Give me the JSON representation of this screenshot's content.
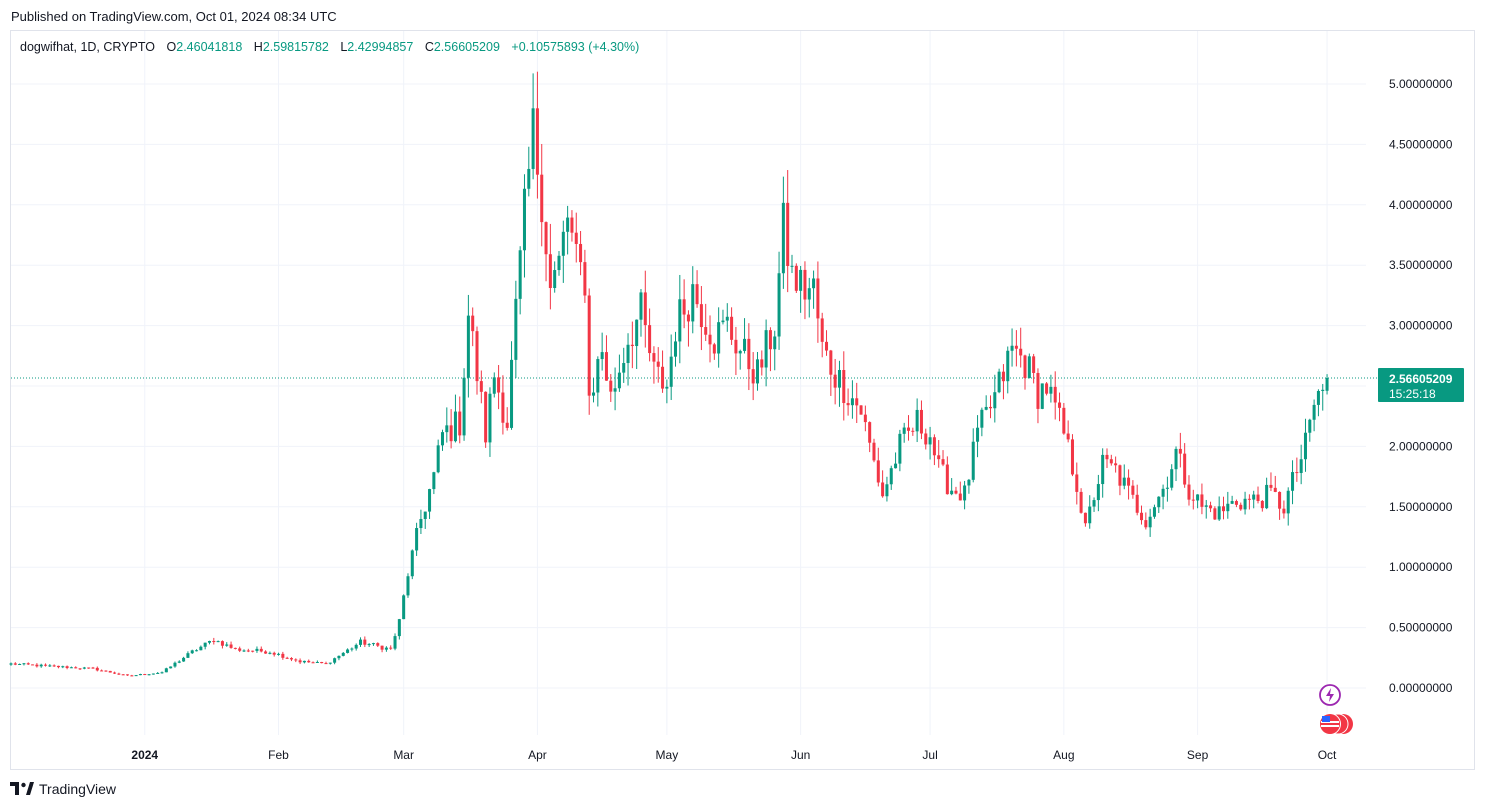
{
  "published": "Published on TradingView.com, Oct 01, 2024 08:34 UTC",
  "legend": {
    "symbol": "dogwifhat, 1D, CRYPTO",
    "open_label": "O",
    "open": "2.46041818",
    "high_label": "H",
    "high": "2.59815782",
    "low_label": "L",
    "low": "2.42994857",
    "close_label": "C",
    "close": "2.56605209",
    "change": "+0.10575893 (+4.30%)"
  },
  "price_tag": {
    "price": "2.56605209",
    "countdown": "15:25:18"
  },
  "footer": {
    "brand": "TradingView"
  },
  "colors": {
    "up": "#089981",
    "down": "#f23645",
    "grid": "#f0f3fa",
    "price_line": "#089981"
  },
  "chart_data": {
    "type": "candlestick",
    "y_ticks": [
      "5.00000000",
      "4.50000000",
      "4.00000000",
      "3.50000000",
      "3.00000000",
      "2.50000000",
      "2.00000000",
      "1.50000000",
      "1.00000000",
      "0.50000000",
      "0.00000000"
    ],
    "y_tick_values": [
      5.0,
      4.5,
      4.0,
      3.5,
      3.0,
      2.5,
      2.0,
      1.5,
      1.0,
      0.5,
      0.0
    ],
    "x_ticks": [
      "2024",
      "Feb",
      "Mar",
      "Apr",
      "May",
      "Jun",
      "Jul",
      "Aug",
      "Sep",
      "Oct"
    ],
    "x_tick_dates": [
      "2024-01-01",
      "2024-02-01",
      "2024-03-01",
      "2024-04-01",
      "2024-05-01",
      "2024-06-01",
      "2024-07-01",
      "2024-08-01",
      "2024-09-01",
      "2024-10-01"
    ],
    "last_price": 2.56605209,
    "keypoints": [
      {
        "date": "2023-12-01",
        "price": 0.2
      },
      {
        "date": "2023-12-10",
        "price": 0.18
      },
      {
        "date": "2023-12-20",
        "price": 0.16
      },
      {
        "date": "2023-12-28",
        "price": 0.1
      },
      {
        "date": "2024-01-05",
        "price": 0.13
      },
      {
        "date": "2024-01-12",
        "price": 0.3
      },
      {
        "date": "2024-01-17",
        "price": 0.4
      },
      {
        "date": "2024-01-22",
        "price": 0.32
      },
      {
        "date": "2024-01-30",
        "price": 0.3
      },
      {
        "date": "2024-02-06",
        "price": 0.22
      },
      {
        "date": "2024-02-12",
        "price": 0.2
      },
      {
        "date": "2024-02-20",
        "price": 0.38
      },
      {
        "date": "2024-02-27",
        "price": 0.32
      },
      {
        "date": "2024-02-29",
        "price": 0.55
      },
      {
        "date": "2024-03-02",
        "price": 0.95
      },
      {
        "date": "2024-03-05",
        "price": 1.4
      },
      {
        "date": "2024-03-08",
        "price": 1.75
      },
      {
        "date": "2024-03-10",
        "price": 2.1
      },
      {
        "date": "2024-03-14",
        "price": 2.2
      },
      {
        "date": "2024-03-16",
        "price": 3.1
      },
      {
        "date": "2024-03-20",
        "price": 2.1
      },
      {
        "date": "2024-03-22",
        "price": 2.6
      },
      {
        "date": "2024-03-25",
        "price": 2.2
      },
      {
        "date": "2024-03-27",
        "price": 3.1
      },
      {
        "date": "2024-03-29",
        "price": 3.9
      },
      {
        "date": "2024-03-31",
        "price": 4.6
      },
      {
        "date": "2024-04-02",
        "price": 4.1
      },
      {
        "date": "2024-04-04",
        "price": 3.3
      },
      {
        "date": "2024-04-06",
        "price": 3.5
      },
      {
        "date": "2024-04-08",
        "price": 3.9
      },
      {
        "date": "2024-04-10",
        "price": 3.5
      },
      {
        "date": "2024-04-12",
        "price": 3.4
      },
      {
        "date": "2024-04-13",
        "price": 2.4
      },
      {
        "date": "2024-04-16",
        "price": 2.8
      },
      {
        "date": "2024-04-18",
        "price": 2.4
      },
      {
        "date": "2024-04-22",
        "price": 2.9
      },
      {
        "date": "2024-04-25",
        "price": 3.1
      },
      {
        "date": "2024-04-28",
        "price": 2.6
      },
      {
        "date": "2024-05-01",
        "price": 2.5
      },
      {
        "date": "2024-05-03",
        "price": 3.0
      },
      {
        "date": "2024-05-07",
        "price": 3.3
      },
      {
        "date": "2024-05-12",
        "price": 2.9
      },
      {
        "date": "2024-05-15",
        "price": 3.0
      },
      {
        "date": "2024-05-18",
        "price": 2.8
      },
      {
        "date": "2024-05-22",
        "price": 2.6
      },
      {
        "date": "2024-05-26",
        "price": 3.0
      },
      {
        "date": "2024-05-28",
        "price": 3.8
      },
      {
        "date": "2024-05-30",
        "price": 3.4
      },
      {
        "date": "2024-06-02",
        "price": 3.3
      },
      {
        "date": "2024-06-04",
        "price": 3.3
      },
      {
        "date": "2024-06-06",
        "price": 2.8
      },
      {
        "date": "2024-06-09",
        "price": 2.6
      },
      {
        "date": "2024-06-13",
        "price": 2.4
      },
      {
        "date": "2024-06-15",
        "price": 2.3
      },
      {
        "date": "2024-06-17",
        "price": 2.0
      },
      {
        "date": "2024-06-20",
        "price": 1.6
      },
      {
        "date": "2024-06-24",
        "price": 2.0
      },
      {
        "date": "2024-06-28",
        "price": 2.2
      },
      {
        "date": "2024-07-01",
        "price": 2.1
      },
      {
        "date": "2024-07-03",
        "price": 1.8
      },
      {
        "date": "2024-07-06",
        "price": 1.65
      },
      {
        "date": "2024-07-09",
        "price": 1.6
      },
      {
        "date": "2024-07-12",
        "price": 2.1
      },
      {
        "date": "2024-07-16",
        "price": 2.4
      },
      {
        "date": "2024-07-20",
        "price": 2.8
      },
      {
        "date": "2024-07-23",
        "price": 2.7
      },
      {
        "date": "2024-07-26",
        "price": 2.45
      },
      {
        "date": "2024-07-28",
        "price": 2.5
      },
      {
        "date": "2024-07-30",
        "price": 2.3
      },
      {
        "date": "2024-08-01",
        "price": 2.1
      },
      {
        "date": "2024-08-04",
        "price": 1.7
      },
      {
        "date": "2024-08-06",
        "price": 1.3
      },
      {
        "date": "2024-08-08",
        "price": 1.6
      },
      {
        "date": "2024-08-10",
        "price": 1.85
      },
      {
        "date": "2024-08-13",
        "price": 1.8
      },
      {
        "date": "2024-08-17",
        "price": 1.55
      },
      {
        "date": "2024-08-20",
        "price": 1.4
      },
      {
        "date": "2024-08-24",
        "price": 1.65
      },
      {
        "date": "2024-08-27",
        "price": 1.95
      },
      {
        "date": "2024-08-30",
        "price": 1.65
      },
      {
        "date": "2024-09-02",
        "price": 1.5
      },
      {
        "date": "2024-09-06",
        "price": 1.45
      },
      {
        "date": "2024-09-10",
        "price": 1.55
      },
      {
        "date": "2024-09-14",
        "price": 1.55
      },
      {
        "date": "2024-09-18",
        "price": 1.6
      },
      {
        "date": "2024-09-21",
        "price": 1.5
      },
      {
        "date": "2024-09-24",
        "price": 1.8
      },
      {
        "date": "2024-09-26",
        "price": 2.0
      },
      {
        "date": "2024-09-28",
        "price": 2.35
      },
      {
        "date": "2024-09-30",
        "price": 2.46
      },
      {
        "date": "2024-10-01",
        "price": 2.566
      }
    ],
    "x_range": [
      "2023-12-01",
      "2024-10-04"
    ],
    "ylim": [
      -0.45,
      5.6
    ],
    "grid": true
  }
}
